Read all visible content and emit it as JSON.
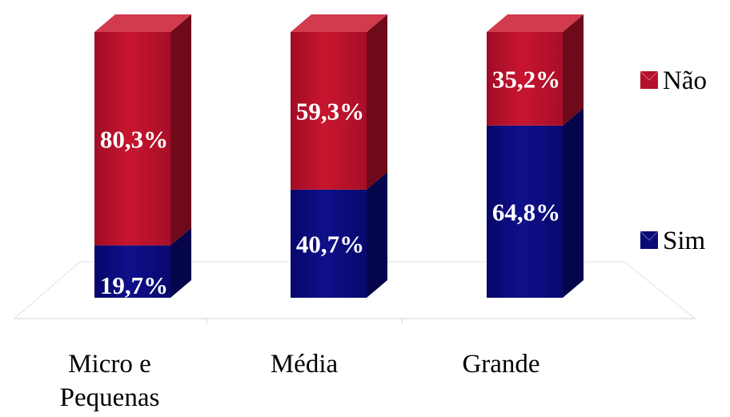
{
  "chart_data": {
    "type": "bar",
    "stacked": true,
    "three_d": true,
    "categories": [
      [
        "Micro e",
        "Pequenas"
      ],
      [
        "Média"
      ],
      [
        "Grande"
      ]
    ],
    "series": [
      {
        "name": "Sim",
        "values": [
          19.7,
          40.7,
          64.8
        ],
        "labels": [
          "19,7%",
          "40,7%",
          "64,8%"
        ],
        "color": "#0a0a78"
      },
      {
        "name": "Não",
        "values": [
          80.3,
          59.3,
          35.2
        ],
        "labels": [
          "80,3%",
          "59,3%",
          "35,2%"
        ],
        "color": "#b5102c"
      }
    ],
    "ylim": [
      0,
      100
    ],
    "legend_position": "right",
    "legend_order": [
      "Não",
      "Sim"
    ],
    "grid": false,
    "title": "",
    "xlabel": "",
    "ylabel": ""
  }
}
